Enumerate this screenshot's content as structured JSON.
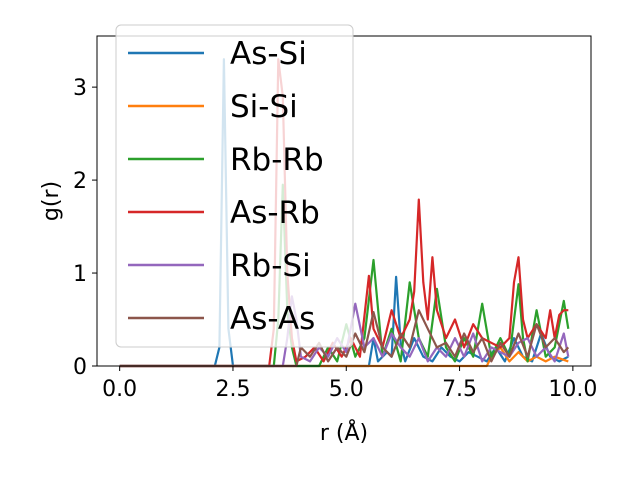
{
  "chart_data": {
    "type": "line",
    "title": "",
    "xlabel": "r (Å)",
    "ylabel": "g(r)",
    "xlim": [
      -0.5,
      10.4
    ],
    "ylim": [
      0,
      3.55
    ],
    "xticks": [
      0.0,
      2.5,
      5.0,
      7.5,
      10.0
    ],
    "xtick_labels": [
      "0.0",
      "2.5",
      "5.0",
      "7.5",
      "10.0"
    ],
    "yticks": [
      0,
      1,
      2,
      3
    ],
    "ytick_labels": [
      "0",
      "1",
      "2",
      "3"
    ],
    "grid": false,
    "legend_position": "upper-left",
    "series": [
      {
        "name": "As-Si",
        "color": "#1f77b4",
        "points": [
          [
            0,
            0
          ],
          [
            2.1,
            0
          ],
          [
            2.2,
            0.2
          ],
          [
            2.3,
            3.3
          ],
          [
            2.4,
            0.4
          ],
          [
            2.5,
            0
          ],
          [
            5.5,
            0
          ],
          [
            5.6,
            0.3
          ],
          [
            5.7,
            0.05
          ],
          [
            5.9,
            0.15
          ],
          [
            6.0,
            0.1
          ],
          [
            6.1,
            0.96
          ],
          [
            6.2,
            0.25
          ],
          [
            6.3,
            0.05
          ],
          [
            6.5,
            0.3
          ],
          [
            6.7,
            0.1
          ],
          [
            6.9,
            0.05
          ],
          [
            7.1,
            0.2
          ],
          [
            7.3,
            0.1
          ],
          [
            7.5,
            0.05
          ],
          [
            7.7,
            0.15
          ],
          [
            7.9,
            0.1
          ],
          [
            8.1,
            0.05
          ],
          [
            8.3,
            0.2
          ],
          [
            8.5,
            0.05
          ],
          [
            8.7,
            0.3
          ],
          [
            8.9,
            0.1
          ],
          [
            9.1,
            0.05
          ],
          [
            9.3,
            0.35
          ],
          [
            9.5,
            0.1
          ],
          [
            9.7,
            0.05
          ],
          [
            9.9,
            0.1
          ]
        ]
      },
      {
        "name": "Si-Si",
        "color": "#ff7f0e",
        "points": [
          [
            0,
            0
          ],
          [
            8.1,
            0
          ],
          [
            8.2,
            0.1
          ],
          [
            8.4,
            0.2
          ],
          [
            8.6,
            0.05
          ],
          [
            8.8,
            0.15
          ],
          [
            9.0,
            0.05
          ],
          [
            9.2,
            0.1
          ],
          [
            9.4,
            0.05
          ],
          [
            9.6,
            0.1
          ],
          [
            9.9,
            0.05
          ]
        ]
      },
      {
        "name": "Rb-Rb",
        "color": "#2ca02c",
        "points": [
          [
            0,
            0
          ],
          [
            3.4,
            0
          ],
          [
            3.5,
            0.5
          ],
          [
            3.6,
            1.95
          ],
          [
            3.7,
            0.6
          ],
          [
            3.8,
            0.2
          ],
          [
            3.9,
            0
          ],
          [
            4.4,
            0
          ],
          [
            4.6,
            0.2
          ],
          [
            4.8,
            0.05
          ],
          [
            5.0,
            0.45
          ],
          [
            5.2,
            0.1
          ],
          [
            5.4,
            0.3
          ],
          [
            5.6,
            1.14
          ],
          [
            5.8,
            0.1
          ],
          [
            6.0,
            0.4
          ],
          [
            6.2,
            0.05
          ],
          [
            6.4,
            0.9
          ],
          [
            6.6,
            0.3
          ],
          [
            6.8,
            0.1
          ],
          [
            7.0,
            0.83
          ],
          [
            7.2,
            0.2
          ],
          [
            7.4,
            0.05
          ],
          [
            7.6,
            0.3
          ],
          [
            7.8,
            0.1
          ],
          [
            8.0,
            0.67
          ],
          [
            8.2,
            0.1
          ],
          [
            8.4,
            0.3
          ],
          [
            8.6,
            0.1
          ],
          [
            8.8,
            0.88
          ],
          [
            8.9,
            0.3
          ],
          [
            9.0,
            0.05
          ],
          [
            9.2,
            0.6
          ],
          [
            9.4,
            0.1
          ],
          [
            9.6,
            0.2
          ],
          [
            9.8,
            0.7
          ],
          [
            9.9,
            0.4
          ]
        ]
      },
      {
        "name": "As-Rb",
        "color": "#d62728",
        "points": [
          [
            0,
            0
          ],
          [
            3.3,
            0
          ],
          [
            3.4,
            0.4
          ],
          [
            3.5,
            3.3
          ],
          [
            3.6,
            2.9
          ],
          [
            3.7,
            1.0
          ],
          [
            3.8,
            0.3
          ],
          [
            3.9,
            0.05
          ],
          [
            4.1,
            0.1
          ],
          [
            4.3,
            0.2
          ],
          [
            4.5,
            0.05
          ],
          [
            4.7,
            0.25
          ],
          [
            4.9,
            0.1
          ],
          [
            5.1,
            0.3
          ],
          [
            5.3,
            0.1
          ],
          [
            5.5,
            0.97
          ],
          [
            5.6,
            0.4
          ],
          [
            5.8,
            0.2
          ],
          [
            6.0,
            0.6
          ],
          [
            6.2,
            0.3
          ],
          [
            6.4,
            0.5
          ],
          [
            6.5,
            0.8
          ],
          [
            6.6,
            1.79
          ],
          [
            6.7,
            0.9
          ],
          [
            6.8,
            0.5
          ],
          [
            6.9,
            1.17
          ],
          [
            7.0,
            0.6
          ],
          [
            7.2,
            0.3
          ],
          [
            7.4,
            0.5
          ],
          [
            7.6,
            0.2
          ],
          [
            7.8,
            0.45
          ],
          [
            8.0,
            0.3
          ],
          [
            8.2,
            0.25
          ],
          [
            8.4,
            0.2
          ],
          [
            8.6,
            0.3
          ],
          [
            8.7,
            0.9
          ],
          [
            8.8,
            1.17
          ],
          [
            8.9,
            0.5
          ],
          [
            9.0,
            0.3
          ],
          [
            9.2,
            0.45
          ],
          [
            9.4,
            0.3
          ],
          [
            9.5,
            0.6
          ],
          [
            9.6,
            0.3
          ],
          [
            9.7,
            0.55
          ],
          [
            9.8,
            0.6
          ],
          [
            9.9,
            0.6
          ]
        ]
      },
      {
        "name": "Rb-Si",
        "color": "#9467bd",
        "points": [
          [
            0,
            0
          ],
          [
            3.6,
            0
          ],
          [
            3.7,
            0.3
          ],
          [
            3.8,
            0.75
          ],
          [
            3.9,
            0.5
          ],
          [
            4.0,
            0.1
          ],
          [
            4.2,
            0.05
          ],
          [
            4.4,
            0.2
          ],
          [
            4.6,
            0.1
          ],
          [
            4.8,
            0.3
          ],
          [
            5.0,
            0.15
          ],
          [
            5.2,
            0.67
          ],
          [
            5.4,
            0.2
          ],
          [
            5.6,
            0.3
          ],
          [
            5.8,
            0.1
          ],
          [
            6.0,
            0.35
          ],
          [
            6.2,
            0.2
          ],
          [
            6.4,
            0.1
          ],
          [
            6.6,
            0.3
          ],
          [
            6.8,
            0.05
          ],
          [
            7.0,
            0.2
          ],
          [
            7.2,
            0.1
          ],
          [
            7.4,
            0.3
          ],
          [
            7.6,
            0.1
          ],
          [
            7.8,
            0.35
          ],
          [
            8.0,
            0.05
          ],
          [
            8.2,
            0.2
          ],
          [
            8.4,
            0.15
          ],
          [
            8.6,
            0.1
          ],
          [
            8.8,
            0.25
          ],
          [
            9.0,
            0.3
          ],
          [
            9.2,
            0.1
          ],
          [
            9.4,
            0.2
          ],
          [
            9.6,
            0.05
          ],
          [
            9.8,
            0.35
          ],
          [
            9.9,
            0.1
          ]
        ]
      },
      {
        "name": "As-As",
        "color": "#8c564b",
        "points": [
          [
            0,
            0
          ],
          [
            3.9,
            0
          ],
          [
            4.0,
            0.2
          ],
          [
            4.2,
            0.1
          ],
          [
            4.4,
            0.25
          ],
          [
            4.6,
            0.05
          ],
          [
            4.8,
            0.2
          ],
          [
            5.0,
            0.1
          ],
          [
            5.2,
            0.35
          ],
          [
            5.4,
            0.15
          ],
          [
            5.6,
            0.58
          ],
          [
            5.8,
            0.2
          ],
          [
            6.0,
            0.1
          ],
          [
            6.2,
            0.35
          ],
          [
            6.4,
            0.2
          ],
          [
            6.6,
            0.6
          ],
          [
            6.8,
            0.4
          ],
          [
            7.0,
            0.2
          ],
          [
            7.2,
            0.25
          ],
          [
            7.4,
            0.1
          ],
          [
            7.6,
            0.35
          ],
          [
            7.8,
            0.15
          ],
          [
            8.0,
            0.3
          ],
          [
            8.2,
            0.05
          ],
          [
            8.4,
            0.25
          ],
          [
            8.6,
            0.1
          ],
          [
            8.8,
            0.35
          ],
          [
            9.0,
            0.1
          ],
          [
            9.2,
            0.45
          ],
          [
            9.4,
            0.2
          ],
          [
            9.6,
            0.3
          ],
          [
            9.8,
            0.15
          ],
          [
            9.9,
            0.2
          ]
        ]
      }
    ]
  }
}
